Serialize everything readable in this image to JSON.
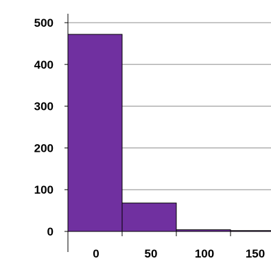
{
  "chart_data": {
    "type": "bar",
    "title": "",
    "xlabel": "",
    "ylabel": "",
    "ylim": [
      0,
      500
    ],
    "xlim": [
      0,
      150
    ],
    "bins": [
      {
        "start": 0,
        "end": 50,
        "value": 472
      },
      {
        "start": 50,
        "end": 100,
        "value": 68
      },
      {
        "start": 100,
        "end": 150,
        "value": 4
      },
      {
        "start": 150,
        "end": 200,
        "value": 2
      }
    ],
    "yticks": [
      0,
      100,
      200,
      300,
      400,
      500
    ],
    "ytick_labels": [
      "0",
      "100",
      "200",
      "300",
      "400",
      "500"
    ],
    "xticks": [
      0,
      50,
      100,
      150
    ],
    "xtick_labels": [
      "0",
      "50",
      "100",
      "150"
    ],
    "grid": "horizontal",
    "legend": "none",
    "colors": {
      "bar_fill": "#7030A0",
      "bar_stroke": "#000000",
      "grid": "#8c8c8c",
      "axis": "#000000"
    }
  }
}
